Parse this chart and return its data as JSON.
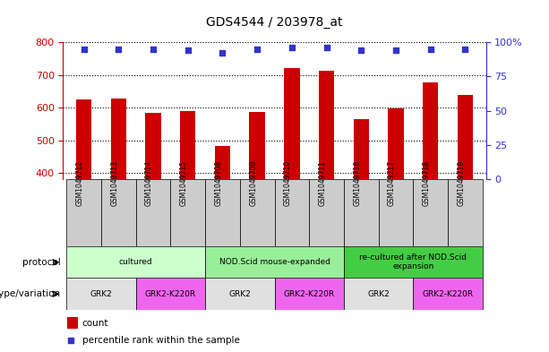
{
  "title": "GDS4544 / 203978_at",
  "samples": [
    "GSM1049712",
    "GSM1049713",
    "GSM1049714",
    "GSM1049715",
    "GSM1049708",
    "GSM1049709",
    "GSM1049710",
    "GSM1049711",
    "GSM1049716",
    "GSM1049717",
    "GSM1049718",
    "GSM1049719"
  ],
  "counts": [
    625,
    628,
    585,
    590,
    483,
    588,
    720,
    712,
    565,
    598,
    678,
    640
  ],
  "percentile_ranks": [
    95,
    95,
    95,
    94,
    92,
    95,
    96,
    96,
    94,
    94,
    95,
    95
  ],
  "ylim_left": [
    380,
    800
  ],
  "ylim_right": [
    0,
    100
  ],
  "yticks_left": [
    400,
    500,
    600,
    700,
    800
  ],
  "yticks_right": [
    0,
    25,
    50,
    75,
    100
  ],
  "bar_color": "#cc0000",
  "dot_color": "#3333cc",
  "protocol_groups": [
    {
      "label": "cultured",
      "start": 0,
      "end": 4,
      "color": "#ccffcc"
    },
    {
      "label": "NOD.Scid mouse-expanded",
      "start": 4,
      "end": 8,
      "color": "#99ee99"
    },
    {
      "label": "re-cultured after NOD.Scid\nexpansion",
      "start": 8,
      "end": 12,
      "color": "#44cc44"
    }
  ],
  "genotype_groups": [
    {
      "label": "GRK2",
      "start": 0,
      "end": 2,
      "color": "#e0e0e0"
    },
    {
      "label": "GRK2-K220R",
      "start": 2,
      "end": 4,
      "color": "#ee66ee"
    },
    {
      "label": "GRK2",
      "start": 4,
      "end": 6,
      "color": "#e0e0e0"
    },
    {
      "label": "GRK2-K220R",
      "start": 6,
      "end": 8,
      "color": "#ee66ee"
    },
    {
      "label": "GRK2",
      "start": 8,
      "end": 10,
      "color": "#e0e0e0"
    },
    {
      "label": "GRK2-K220R",
      "start": 10,
      "end": 12,
      "color": "#ee66ee"
    }
  ],
  "sample_box_color": "#cccccc",
  "left_axis_color": "#cc0000",
  "right_axis_color": "#3333cc",
  "grid_color": "#000000"
}
